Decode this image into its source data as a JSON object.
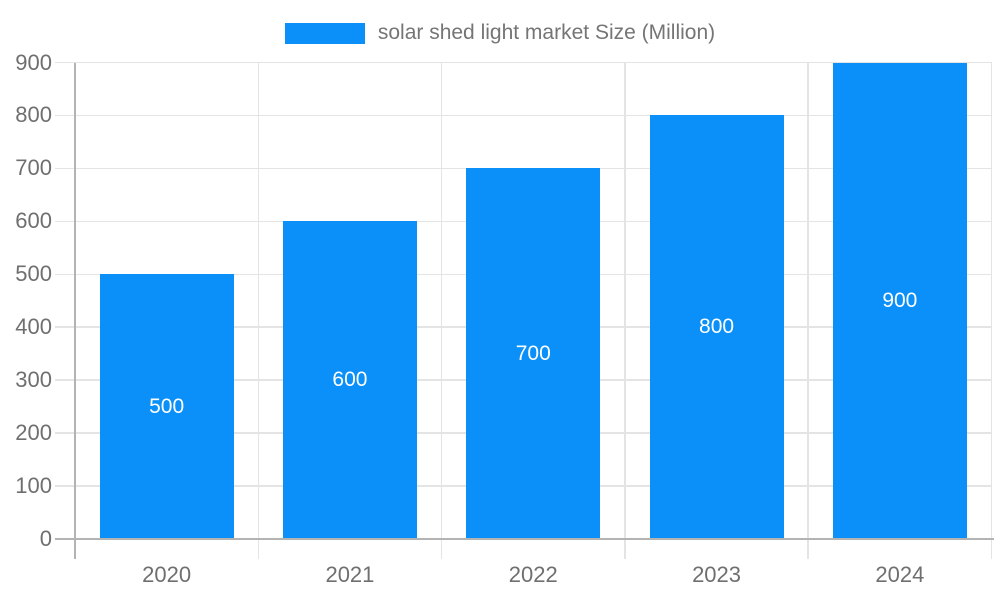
{
  "legend": {
    "label": "solar shed light market Size (Million)"
  },
  "colors": {
    "bar": "#0a90f8",
    "grid": "#e4e4e4",
    "axis": "#b3b3b3",
    "tick_text": "#6f6f6f",
    "legend_text": "#757575",
    "bar_value_text": "#ffffff"
  },
  "chart_data": {
    "type": "bar",
    "title": "solar shed light market Size (Million)",
    "series": [
      {
        "name": "solar shed light market Size (Million)",
        "values": [
          500,
          600,
          700,
          800,
          900
        ]
      }
    ],
    "categories": [
      "2020",
      "2021",
      "2022",
      "2023",
      "2024"
    ],
    "data_labels": [
      "500",
      "600",
      "700",
      "800",
      "900"
    ],
    "xlabel": "",
    "ylabel": "",
    "ylim": [
      0,
      900
    ],
    "ytick_step": 100,
    "yticks": [
      "0",
      "100",
      "200",
      "300",
      "400",
      "500",
      "600",
      "700",
      "800",
      "900"
    ],
    "grid": "on",
    "legend_position": "top-center",
    "data_label_position": "center-of-bar"
  }
}
